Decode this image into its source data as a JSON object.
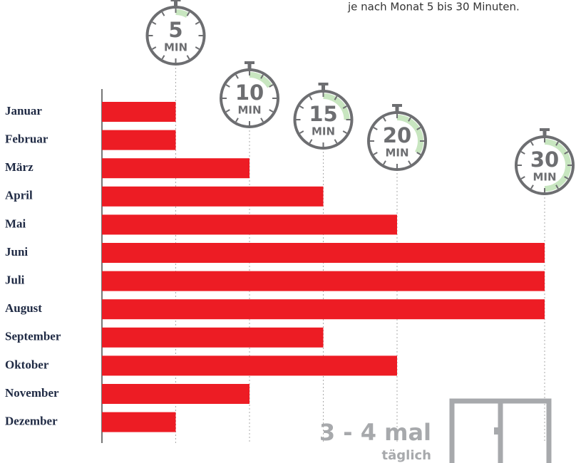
{
  "chart_data": {
    "type": "bar",
    "orientation": "horizontal",
    "subtitle": "je nach Monat 5 bis 30 Minuten.",
    "categories": [
      "Januar",
      "Februar",
      "März",
      "April",
      "Mai",
      "Juni",
      "Juli",
      "August",
      "September",
      "Oktober",
      "November",
      "Dezember"
    ],
    "values": [
      5,
      5,
      10,
      15,
      20,
      30,
      30,
      30,
      15,
      20,
      10,
      5
    ],
    "color": "#ed1c24",
    "xlim": [
      0,
      30
    ],
    "xticks": [
      5,
      10,
      15,
      20,
      30
    ],
    "tick_unit": "MIN",
    "footer": {
      "title": "3 - 4 mal",
      "subtitle": "täglich"
    }
  }
}
